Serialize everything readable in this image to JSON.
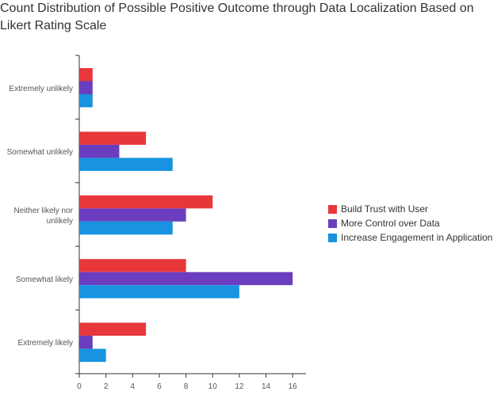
{
  "chart_data": {
    "type": "bar",
    "orientation": "horizontal",
    "title": "Count Distribution of Possible Positive Outcome through Data Localization Based on Likert Rating Scale",
    "categories": [
      "Extremely unlikely",
      "Somewhat unlikely",
      "Neither likely nor unlikely",
      "Somewhat likely",
      "Extremely likely"
    ],
    "series": [
      {
        "name": "Build Trust with User",
        "color": "#e8373b",
        "values": [
          1,
          5,
          10,
          8,
          5
        ]
      },
      {
        "name": "More Control over Data",
        "color": "#6a3ebf",
        "values": [
          1,
          3,
          8,
          16,
          1
        ]
      },
      {
        "name": "Increase Engagement in Application",
        "color": "#1793e0",
        "values": [
          1,
          7,
          7,
          12,
          2
        ]
      }
    ],
    "xlim": [
      0,
      17
    ],
    "xticks": [
      0,
      2,
      4,
      6,
      8,
      10,
      12,
      14,
      16
    ],
    "grid": false,
    "legend_position": "right"
  }
}
